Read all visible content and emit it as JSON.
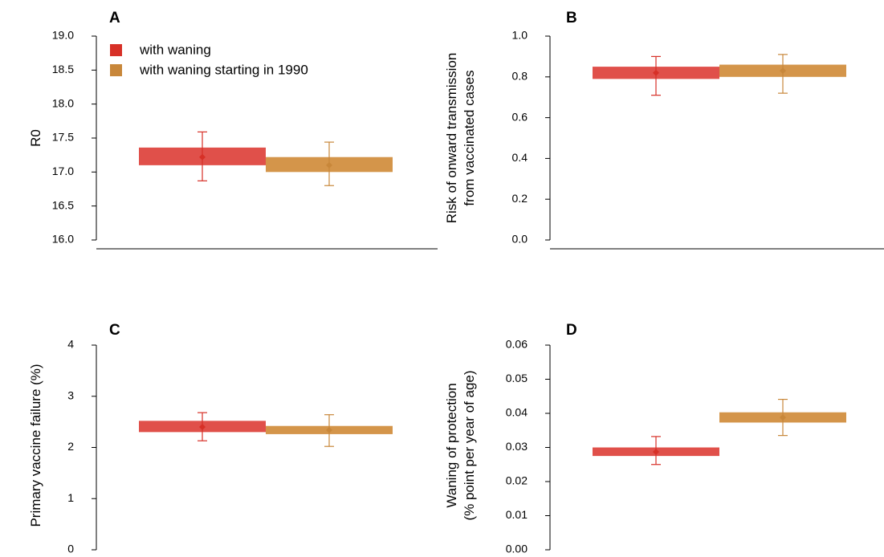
{
  "legend": [
    {
      "label": "with waning",
      "color": "#d73027"
    },
    {
      "label": "with waning starting in 1990",
      "color": "#c8873a"
    }
  ],
  "colors": {
    "with_waning_bar": "#e0504a",
    "with_waning_point": "#d73027",
    "starting_1990_bar": "#d4954a",
    "starting_1990_point": "#c8873a"
  },
  "chart_data": [
    {
      "type": "bar",
      "panel": "A",
      "ylabel": "R0",
      "ylim": [
        16.0,
        19.0
      ],
      "yticks": [
        "16.0",
        "16.5",
        "17.0",
        "17.5",
        "18.0",
        "18.5",
        "19.0"
      ],
      "series": [
        {
          "name": "with waning",
          "band": [
            17.1,
            17.36
          ],
          "point": 17.22,
          "ci": [
            16.87,
            17.59
          ]
        },
        {
          "name": "with waning starting in 1990",
          "band": [
            17.0,
            17.22
          ],
          "point": 17.1,
          "ci": [
            16.8,
            17.44
          ]
        }
      ]
    },
    {
      "type": "bar",
      "panel": "B",
      "ylabel": [
        "Risk of onward transmission",
        "from vaccinated cases"
      ],
      "ylim": [
        0.0,
        1.0
      ],
      "yticks": [
        "0.0",
        "0.2",
        "0.4",
        "0.6",
        "0.8",
        "1.0"
      ],
      "series": [
        {
          "name": "with waning",
          "band": [
            0.79,
            0.85
          ],
          "point": 0.82,
          "ci": [
            0.71,
            0.9
          ]
        },
        {
          "name": "with waning starting in 1990",
          "band": [
            0.8,
            0.86
          ],
          "point": 0.83,
          "ci": [
            0.72,
            0.91
          ]
        }
      ]
    },
    {
      "type": "bar",
      "panel": "C",
      "ylabel": "Primary vaccine failure (%)",
      "ylim": [
        0,
        4
      ],
      "yticks": [
        "0",
        "1",
        "2",
        "3",
        "4"
      ],
      "series": [
        {
          "name": "with waning",
          "band": [
            2.3,
            2.52
          ],
          "point": 2.4,
          "ci": [
            2.13,
            2.68
          ]
        },
        {
          "name": "with waning starting in 1990",
          "band": [
            2.26,
            2.42
          ],
          "point": 2.34,
          "ci": [
            2.02,
            2.64
          ]
        }
      ]
    },
    {
      "type": "bar",
      "panel": "D",
      "ylabel": [
        "Waning of protection",
        "(% point per year of age)"
      ],
      "ylim": [
        0.0,
        0.06
      ],
      "yticks": [
        "0.00",
        "0.01",
        "0.02",
        "0.03",
        "0.04",
        "0.05",
        "0.06"
      ],
      "series": [
        {
          "name": "with waning",
          "band": [
            0.0275,
            0.03
          ],
          "point": 0.0287,
          "ci": [
            0.025,
            0.0332
          ]
        },
        {
          "name": "with waning starting in 1990",
          "band": [
            0.0373,
            0.0403
          ],
          "point": 0.0388,
          "ci": [
            0.0335,
            0.0441
          ]
        }
      ]
    }
  ]
}
